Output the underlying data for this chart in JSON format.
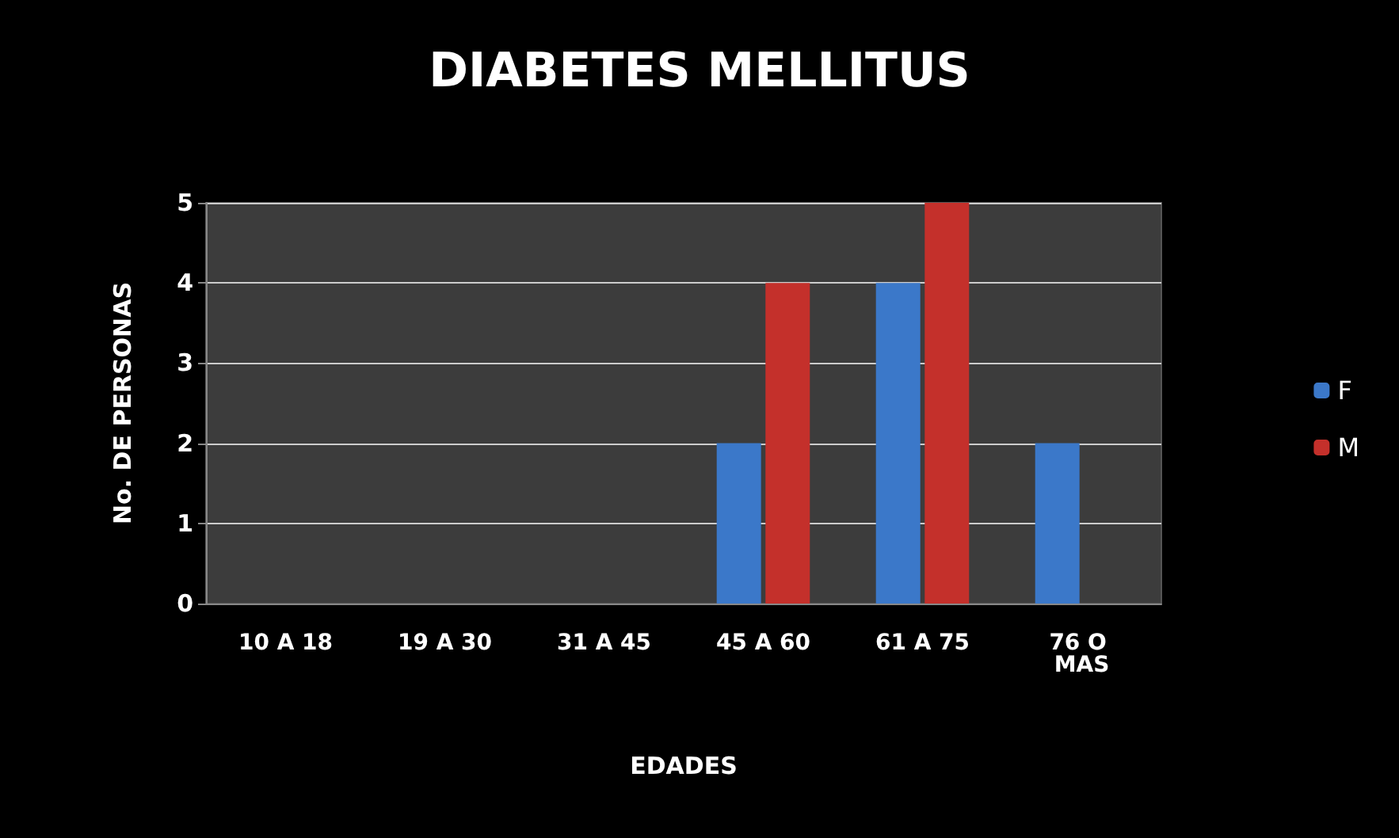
{
  "chart_data": {
    "type": "bar",
    "title": "DIABETES MELLITUS",
    "xlabel": "EDADES",
    "ylabel": "No. DE PERSONAS",
    "categories": [
      "10 A 18",
      "19 A 30",
      "31 A 45",
      "45 A 60",
      "61 A 75",
      "76 O MAS"
    ],
    "series": [
      {
        "name": "F",
        "color": "#3b78c9",
        "values": [
          0,
          0,
          0,
          2,
          4,
          2
        ]
      },
      {
        "name": "M",
        "color": "#c4302b",
        "values": [
          0,
          0,
          0,
          4,
          5,
          0
        ]
      }
    ],
    "ylim": [
      0,
      5
    ],
    "yticks": [
      0,
      1,
      2,
      3,
      4,
      5
    ],
    "grid": "y",
    "legend": "right"
  }
}
